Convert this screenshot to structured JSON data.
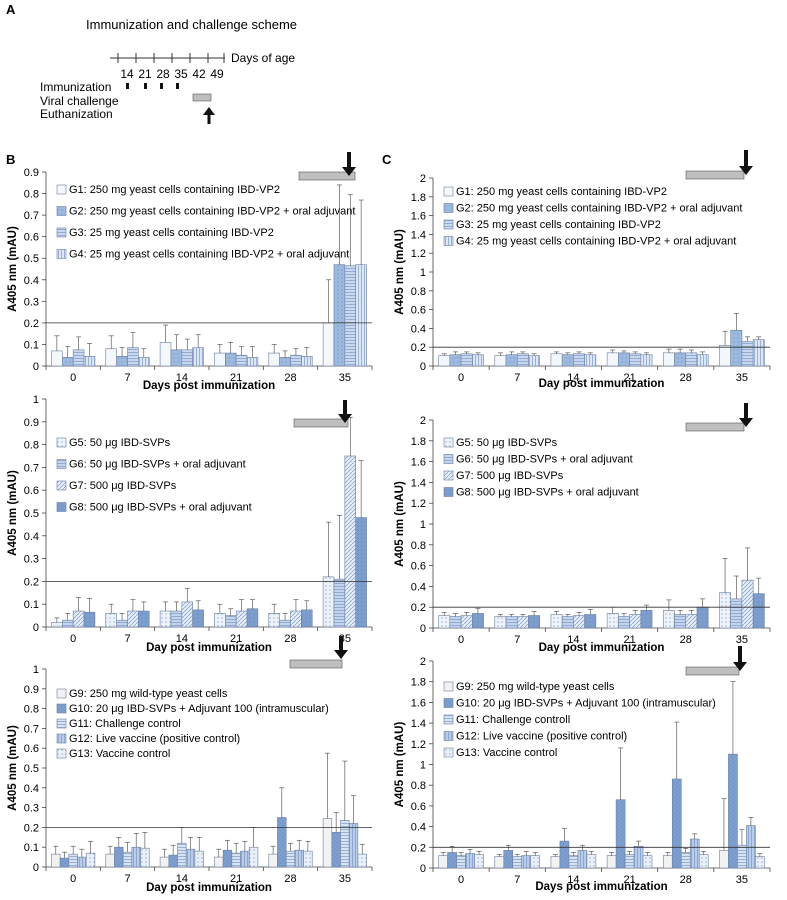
{
  "scheme": {
    "panel_label": "A",
    "title": "Immunization and challenge scheme",
    "axis_label": "Days of age",
    "days": [
      "14",
      "21",
      "28",
      "35",
      "42",
      "49"
    ],
    "rows": [
      "Immunization",
      "Viral challenge",
      "Euthanization"
    ]
  },
  "colors": {
    "axis": "#333333",
    "grid_ref": "#333333",
    "challenge_bar": "#bfbfbf",
    "G1": "#f4f7fb",
    "G2": "#9db9de",
    "G3": "#c9d8ee",
    "G4": "#dde7f4",
    "G5": "#eef3fa",
    "G6": "#c3d4ec",
    "G7": "#e4ecf7",
    "G8": "#7fa0cf",
    "G9": "#f2f2f2",
    "G10": "#7f9fcf",
    "G11": "#d7e2f2",
    "G12": "#b9cde9",
    "G13": "#eaf0f8"
  },
  "chart_data": [
    {
      "id": "B1",
      "panel_label": "B",
      "type": "bar",
      "categories": [
        "0",
        "7",
        "14",
        "21",
        "28",
        "35"
      ],
      "xlabel": "Days post immunization",
      "ylabel": "A405 nm (mAU)",
      "ylim": [
        0,
        0.9
      ],
      "yticks": [
        "0",
        "0.1",
        "0.2",
        "0.3",
        "0.4",
        "0.5",
        "0.6",
        "0.7",
        "0.8",
        "0.9"
      ],
      "reference_line": 0.2,
      "challenge_range": [
        28.5,
        35
      ],
      "euthanization_day": 35,
      "series": [
        {
          "key": "G1",
          "name": "G1: 250 mg yeast cells containing IBD-VP2",
          "values": [
            0.07,
            0.08,
            0.11,
            0.06,
            0.06,
            0.2
          ],
          "errors": [
            0.07,
            0.06,
            0.08,
            0.04,
            0.04,
            0.2
          ]
        },
        {
          "key": "G2",
          "name": "G2: 250 mg yeast cells containing IBD-VP2 + oral adjuvant",
          "values": [
            0.04,
            0.045,
            0.075,
            0.06,
            0.04,
            0.47
          ],
          "errors": [
            0.05,
            0.04,
            0.07,
            0.05,
            0.03,
            0.37
          ]
        },
        {
          "key": "G3",
          "name": "G3: 25 mg yeast cells containing IBD-VP2",
          "values": [
            0.075,
            0.085,
            0.075,
            0.05,
            0.05,
            0.465
          ],
          "errors": [
            0.06,
            0.07,
            0.05,
            0.04,
            0.03,
            0.33
          ]
        },
        {
          "key": "G4",
          "name": "G4: 25 mg yeast cells containing IBD-VP2 + oral adjuvant",
          "values": [
            0.045,
            0.04,
            0.085,
            0.04,
            0.045,
            0.47
          ],
          "errors": [
            0.06,
            0.04,
            0.06,
            0.05,
            0.04,
            0.3
          ]
        }
      ]
    },
    {
      "id": "B2",
      "panel_label": "",
      "type": "bar",
      "categories": [
        "0",
        "7",
        "14",
        "21",
        "28",
        "35"
      ],
      "xlabel": "Day post immunization",
      "ylabel": "A405 nm (mAU)",
      "ylim": [
        0,
        1
      ],
      "yticks": [
        "0",
        "0.1",
        "0.2",
        "0.3",
        "0.4",
        "0.5",
        "0.6",
        "0.7",
        "0.8",
        "0.9",
        "1"
      ],
      "reference_line": 0.2,
      "challenge_range": [
        28.5,
        35
      ],
      "euthanization_day": 35,
      "series": [
        {
          "key": "G5",
          "name": "G5: 50 μg IBD-SVPs",
          "values": [
            0.02,
            0.06,
            0.07,
            0.06,
            0.06,
            0.22
          ],
          "errors": [
            0.02,
            0.04,
            0.04,
            0.04,
            0.04,
            0.24
          ]
        },
        {
          "key": "G6",
          "name": "G6: 50 μg IBD-SVPs + oral adjuvant",
          "values": [
            0.03,
            0.03,
            0.07,
            0.05,
            0.03,
            0.21
          ],
          "errors": [
            0.03,
            0.03,
            0.04,
            0.03,
            0.03,
            0.28
          ]
        },
        {
          "key": "G7",
          "name": "G7: 500 μg IBD-SVPs",
          "values": [
            0.07,
            0.07,
            0.11,
            0.07,
            0.07,
            0.75
          ],
          "errors": [
            0.06,
            0.05,
            0.06,
            0.05,
            0.05,
            0.17
          ]
        },
        {
          "key": "G8",
          "name": "G8: 500 μg IBD-SVPs + oral adjuvant",
          "values": [
            0.065,
            0.07,
            0.075,
            0.08,
            0.075,
            0.48
          ],
          "errors": [
            0.06,
            0.04,
            0.04,
            0.04,
            0.04,
            0.25
          ]
        }
      ]
    },
    {
      "id": "B3",
      "panel_label": "",
      "type": "bar",
      "categories": [
        "0",
        "7",
        "14",
        "21",
        "28",
        "35"
      ],
      "xlabel": "Day post immunization",
      "ylabel": "A405 nm (mAU)",
      "ylim": [
        0,
        1
      ],
      "yticks": [
        "0",
        "0.1",
        "0.2",
        "0.3",
        "0.4",
        "0.5",
        "0.6",
        "0.7",
        "0.8",
        "0.9",
        "1"
      ],
      "reference_line": 0.2,
      "challenge_range": [
        28.5,
        35
      ],
      "euthanization_day": 35,
      "series": [
        {
          "key": "G9",
          "name": "G9: 250 mg wild-type yeast cells",
          "values": [
            0.065,
            0.065,
            0.05,
            0.05,
            0.065,
            0.245
          ],
          "errors": [
            0.04,
            0.04,
            0.04,
            0.04,
            0.04,
            0.33
          ]
        },
        {
          "key": "G10",
          "name": "G10: 20 μg IBD-SVPs + Adjuvant 100 (intramuscular)",
          "values": [
            0.045,
            0.1,
            0.06,
            0.085,
            0.25,
            0.175
          ],
          "errors": [
            0.03,
            0.05,
            0.05,
            0.05,
            0.15,
            0.1
          ]
        },
        {
          "key": "G11",
          "name": "G11: Challenge control",
          "values": [
            0.065,
            0.075,
            0.12,
            0.07,
            0.08,
            0.235
          ],
          "errors": [
            0.04,
            0.05,
            0.08,
            0.05,
            0.04,
            0.3
          ]
        },
        {
          "key": "G12",
          "name": "G12: Live vaccine (positive control)",
          "values": [
            0.05,
            0.1,
            0.09,
            0.08,
            0.085,
            0.22
          ],
          "errors": [
            0.04,
            0.07,
            0.06,
            0.05,
            0.05,
            0.14
          ]
        },
        {
          "key": "G13",
          "name": "G13: Vaccine control",
          "values": [
            0.07,
            0.095,
            0.08,
            0.1,
            0.08,
            0.065
          ],
          "errors": [
            0.06,
            0.08,
            0.07,
            0.1,
            0.05,
            0.05
          ]
        }
      ]
    },
    {
      "id": "C1",
      "panel_label": "C",
      "type": "bar",
      "categories": [
        "0",
        "7",
        "14",
        "21",
        "28",
        "35"
      ],
      "xlabel": "Day post immunization",
      "ylabel": "A405 nm (mAU)",
      "ylim": [
        0,
        2
      ],
      "yticks": [
        "0",
        "0.2",
        "0.4",
        "0.6",
        "0.8",
        "1",
        "1.2",
        "1.4",
        "1.6",
        "1.8",
        "2"
      ],
      "reference_line": 0.2,
      "challenge_range": [
        28.5,
        35
      ],
      "euthanization_day": 35,
      "series": [
        {
          "key": "G1",
          "name": "G1: 250 mg yeast cells containing IBD-VP2",
          "values": [
            0.11,
            0.11,
            0.13,
            0.14,
            0.14,
            0.22
          ],
          "errors": [
            0.02,
            0.03,
            0.02,
            0.03,
            0.04,
            0.15
          ]
        },
        {
          "key": "G2",
          "name": "G2: 250 mg yeast cells containing IBD-VP2 + oral adjuvant",
          "values": [
            0.12,
            0.12,
            0.12,
            0.14,
            0.14,
            0.38
          ],
          "errors": [
            0.03,
            0.03,
            0.02,
            0.02,
            0.04,
            0.18
          ]
        },
        {
          "key": "G3",
          "name": "G3: 25 mg yeast cells containing IBD-VP2",
          "values": [
            0.13,
            0.13,
            0.13,
            0.13,
            0.14,
            0.26
          ],
          "errors": [
            0.02,
            0.02,
            0.02,
            0.02,
            0.03,
            0.05
          ]
        },
        {
          "key": "G4",
          "name": "G4: 25 mg yeast cells containing IBD-VP2 + oral adjuvant",
          "values": [
            0.12,
            0.11,
            0.12,
            0.12,
            0.12,
            0.28
          ],
          "errors": [
            0.02,
            0.02,
            0.02,
            0.02,
            0.03,
            0.03
          ]
        }
      ]
    },
    {
      "id": "C2",
      "panel_label": "",
      "type": "bar",
      "categories": [
        "0",
        "7",
        "14",
        "21",
        "28",
        "35"
      ],
      "xlabel": "Day post immunization",
      "ylabel": "A405 nm (mAU)",
      "ylim": [
        0,
        2
      ],
      "yticks": [
        "0",
        "0.2",
        "0.4",
        "0.6",
        "0.8",
        "1",
        "1.2",
        "1.4",
        "1.6",
        "1.8",
        "2"
      ],
      "reference_line": 0.2,
      "challenge_range": [
        28.5,
        35
      ],
      "euthanization_day": 35,
      "series": [
        {
          "key": "G5",
          "name": "G5: 50 μg IBD-SVPs",
          "values": [
            0.12,
            0.11,
            0.13,
            0.14,
            0.17,
            0.34
          ],
          "errors": [
            0.03,
            0.02,
            0.03,
            0.06,
            0.1,
            0.33
          ]
        },
        {
          "key": "G6",
          "name": "G6: 50 μg IBD-SVPs + oral adjuvant",
          "values": [
            0.11,
            0.11,
            0.11,
            0.11,
            0.13,
            0.28
          ],
          "errors": [
            0.03,
            0.02,
            0.02,
            0.03,
            0.04,
            0.22
          ]
        },
        {
          "key": "G7",
          "name": "G7: 500 μg IBD-SVPs",
          "values": [
            0.12,
            0.11,
            0.12,
            0.13,
            0.13,
            0.46
          ],
          "errors": [
            0.03,
            0.02,
            0.03,
            0.04,
            0.04,
            0.31
          ]
        },
        {
          "key": "G8",
          "name": "G8: 500 μg IBD-SVPs + oral adjuvant",
          "values": [
            0.14,
            0.12,
            0.13,
            0.17,
            0.2,
            0.33
          ],
          "errors": [
            0.05,
            0.04,
            0.05,
            0.05,
            0.08,
            0.15
          ]
        }
      ]
    },
    {
      "id": "C3",
      "panel_label": "",
      "type": "bar",
      "categories": [
        "0",
        "7",
        "14",
        "21",
        "28",
        "35"
      ],
      "xlabel": "Days post immunization",
      "ylabel": "A405 nm (mAU)",
      "ylim": [
        0,
        2
      ],
      "yticks": [
        "0",
        "0.2",
        "0.4",
        "0.6",
        "0.8",
        "1",
        "1.2",
        "1.4",
        "1.6",
        "1.8",
        "2"
      ],
      "reference_line": 0.2,
      "challenge_range": [
        28.5,
        35
      ],
      "euthanization_day": 35,
      "series": [
        {
          "key": "G9",
          "name": "G9: 250 mg wild-type yeast cells",
          "values": [
            0.12,
            0.11,
            0.11,
            0.12,
            0.12,
            0.17
          ],
          "errors": [
            0.03,
            0.02,
            0.02,
            0.03,
            0.03,
            0.5
          ]
        },
        {
          "key": "G10",
          "name": "G10: 20 μg IBD-SVPs + Adjuvant 100 (intramuscular)",
          "values": [
            0.15,
            0.17,
            0.26,
            0.66,
            0.86,
            1.1
          ],
          "errors": [
            0.06,
            0.05,
            0.12,
            0.5,
            0.55,
            0.7
          ]
        },
        {
          "key": "G11",
          "name": "G11: Challenge controll",
          "values": [
            0.12,
            0.11,
            0.12,
            0.13,
            0.15,
            0.22
          ],
          "errors": [
            0.03,
            0.02,
            0.03,
            0.03,
            0.04,
            0.15
          ]
        },
        {
          "key": "G12",
          "name": "G12: Live vaccine (positive control)",
          "values": [
            0.14,
            0.12,
            0.17,
            0.21,
            0.28,
            0.41
          ],
          "errors": [
            0.04,
            0.04,
            0.05,
            0.05,
            0.05,
            0.08
          ]
        },
        {
          "key": "G13",
          "name": "G13: Vaccine control",
          "values": [
            0.13,
            0.12,
            0.13,
            0.12,
            0.13,
            0.11
          ],
          "errors": [
            0.03,
            0.03,
            0.03,
            0.03,
            0.03,
            0.03
          ]
        }
      ]
    }
  ]
}
